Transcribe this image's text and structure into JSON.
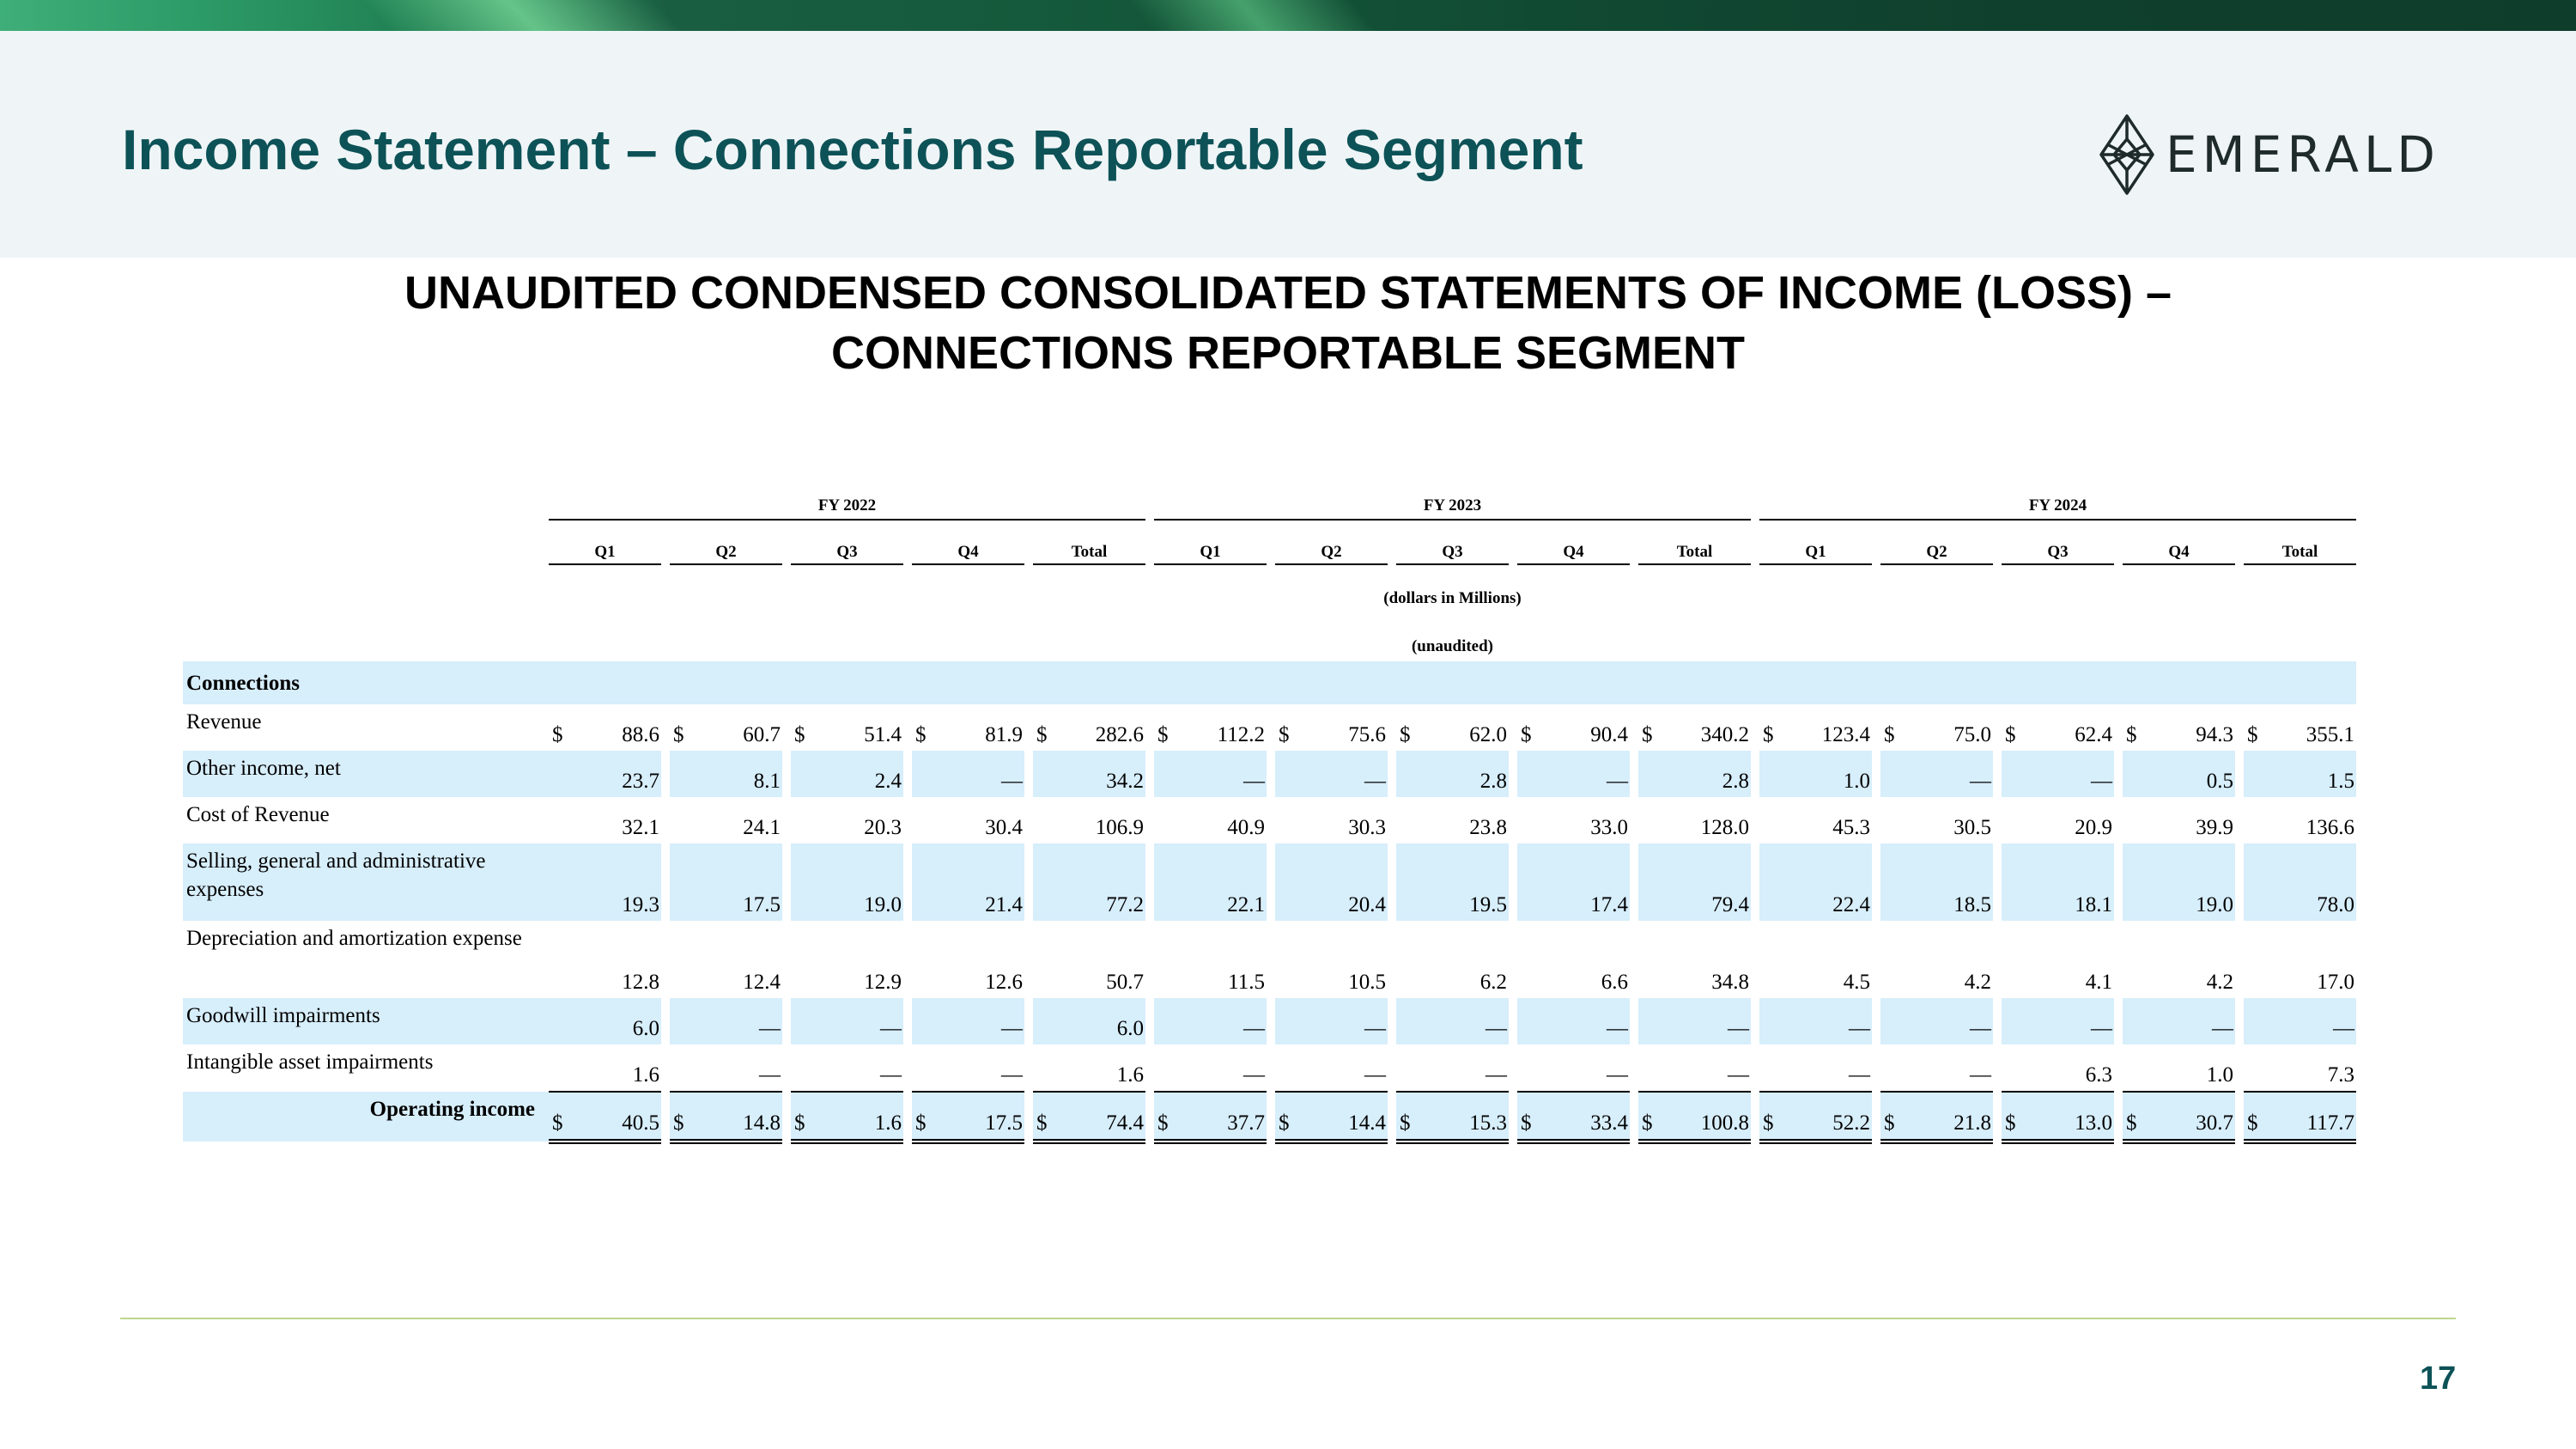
{
  "header": {
    "title": "Income Statement – Connections Reportable Segment",
    "logo_text": "EMERALD",
    "logo_icon": "emerald-gem-icon"
  },
  "document": {
    "heading_line1": "UNAUDITED CONDENSED CONSOLIDATED STATEMENTS OF INCOME (LOSS) –",
    "heading_line2": "CONNECTIONS REPORTABLE SEGMENT"
  },
  "table": {
    "fiscal_years": [
      "FY 2022",
      "FY 2023",
      "FY 2024"
    ],
    "period_labels": [
      "Q1",
      "Q2",
      "Q3",
      "Q4",
      "Total"
    ],
    "unit_note": "(dollars in Millions)",
    "audit_note": "(unaudited)",
    "section_label": "Connections",
    "currency_symbol": "$",
    "rows": [
      {
        "label": "Revenue",
        "values": [
          "88.6",
          "60.7",
          "51.4",
          "81.9",
          "282.6",
          "112.2",
          "75.6",
          "62.0",
          "90.4",
          "340.2",
          "123.4",
          "75.0",
          "62.4",
          "94.3",
          "355.1"
        ]
      },
      {
        "label": "Other income, net",
        "values": [
          "23.7",
          "8.1",
          "2.4",
          "—",
          "34.2",
          "—",
          "—",
          "2.8",
          "—",
          "2.8",
          "1.0",
          "—",
          "—",
          "0.5",
          "1.5"
        ]
      },
      {
        "label": "Cost of Revenue",
        "values": [
          "32.1",
          "24.1",
          "20.3",
          "30.4",
          "106.9",
          "40.9",
          "30.3",
          "23.8",
          "33.0",
          "128.0",
          "45.3",
          "30.5",
          "20.9",
          "39.9",
          "136.6"
        ]
      },
      {
        "label": "Selling, general and administrative expenses",
        "values": [
          "19.3",
          "17.5",
          "19.0",
          "21.4",
          "77.2",
          "22.1",
          "20.4",
          "19.5",
          "17.4",
          "79.4",
          "22.4",
          "18.5",
          "18.1",
          "19.0",
          "78.0"
        ]
      },
      {
        "label": "Depreciation and amortization expense",
        "values": [
          "12.8",
          "12.4",
          "12.9",
          "12.6",
          "50.7",
          "11.5",
          "10.5",
          "6.2",
          "6.6",
          "34.8",
          "4.5",
          "4.2",
          "4.1",
          "4.2",
          "17.0"
        ]
      },
      {
        "label": "Goodwill impairments",
        "values": [
          "6.0",
          "—",
          "—",
          "—",
          "6.0",
          "—",
          "—",
          "—",
          "—",
          "—",
          "—",
          "—",
          "—",
          "—",
          "—"
        ]
      },
      {
        "label": "Intangible asset impairments",
        "values": [
          "1.6",
          "—",
          "—",
          "—",
          "1.6",
          "—",
          "—",
          "—",
          "—",
          "—",
          "—",
          "—",
          "6.3",
          "1.0",
          "7.3"
        ]
      },
      {
        "label": "Operating income",
        "values": [
          "40.5",
          "14.8",
          "1.6",
          "17.5",
          "74.4",
          "37.7",
          "14.4",
          "15.3",
          "33.4",
          "100.8",
          "52.2",
          "21.8",
          "13.0",
          "30.7",
          "117.7"
        ]
      }
    ]
  },
  "footer": {
    "page_number": "17"
  },
  "colors": {
    "title": "#0d5257",
    "header_band": "#eff5f7",
    "row_shade": "#d7eefb",
    "footer_line": "#bcd88a"
  }
}
